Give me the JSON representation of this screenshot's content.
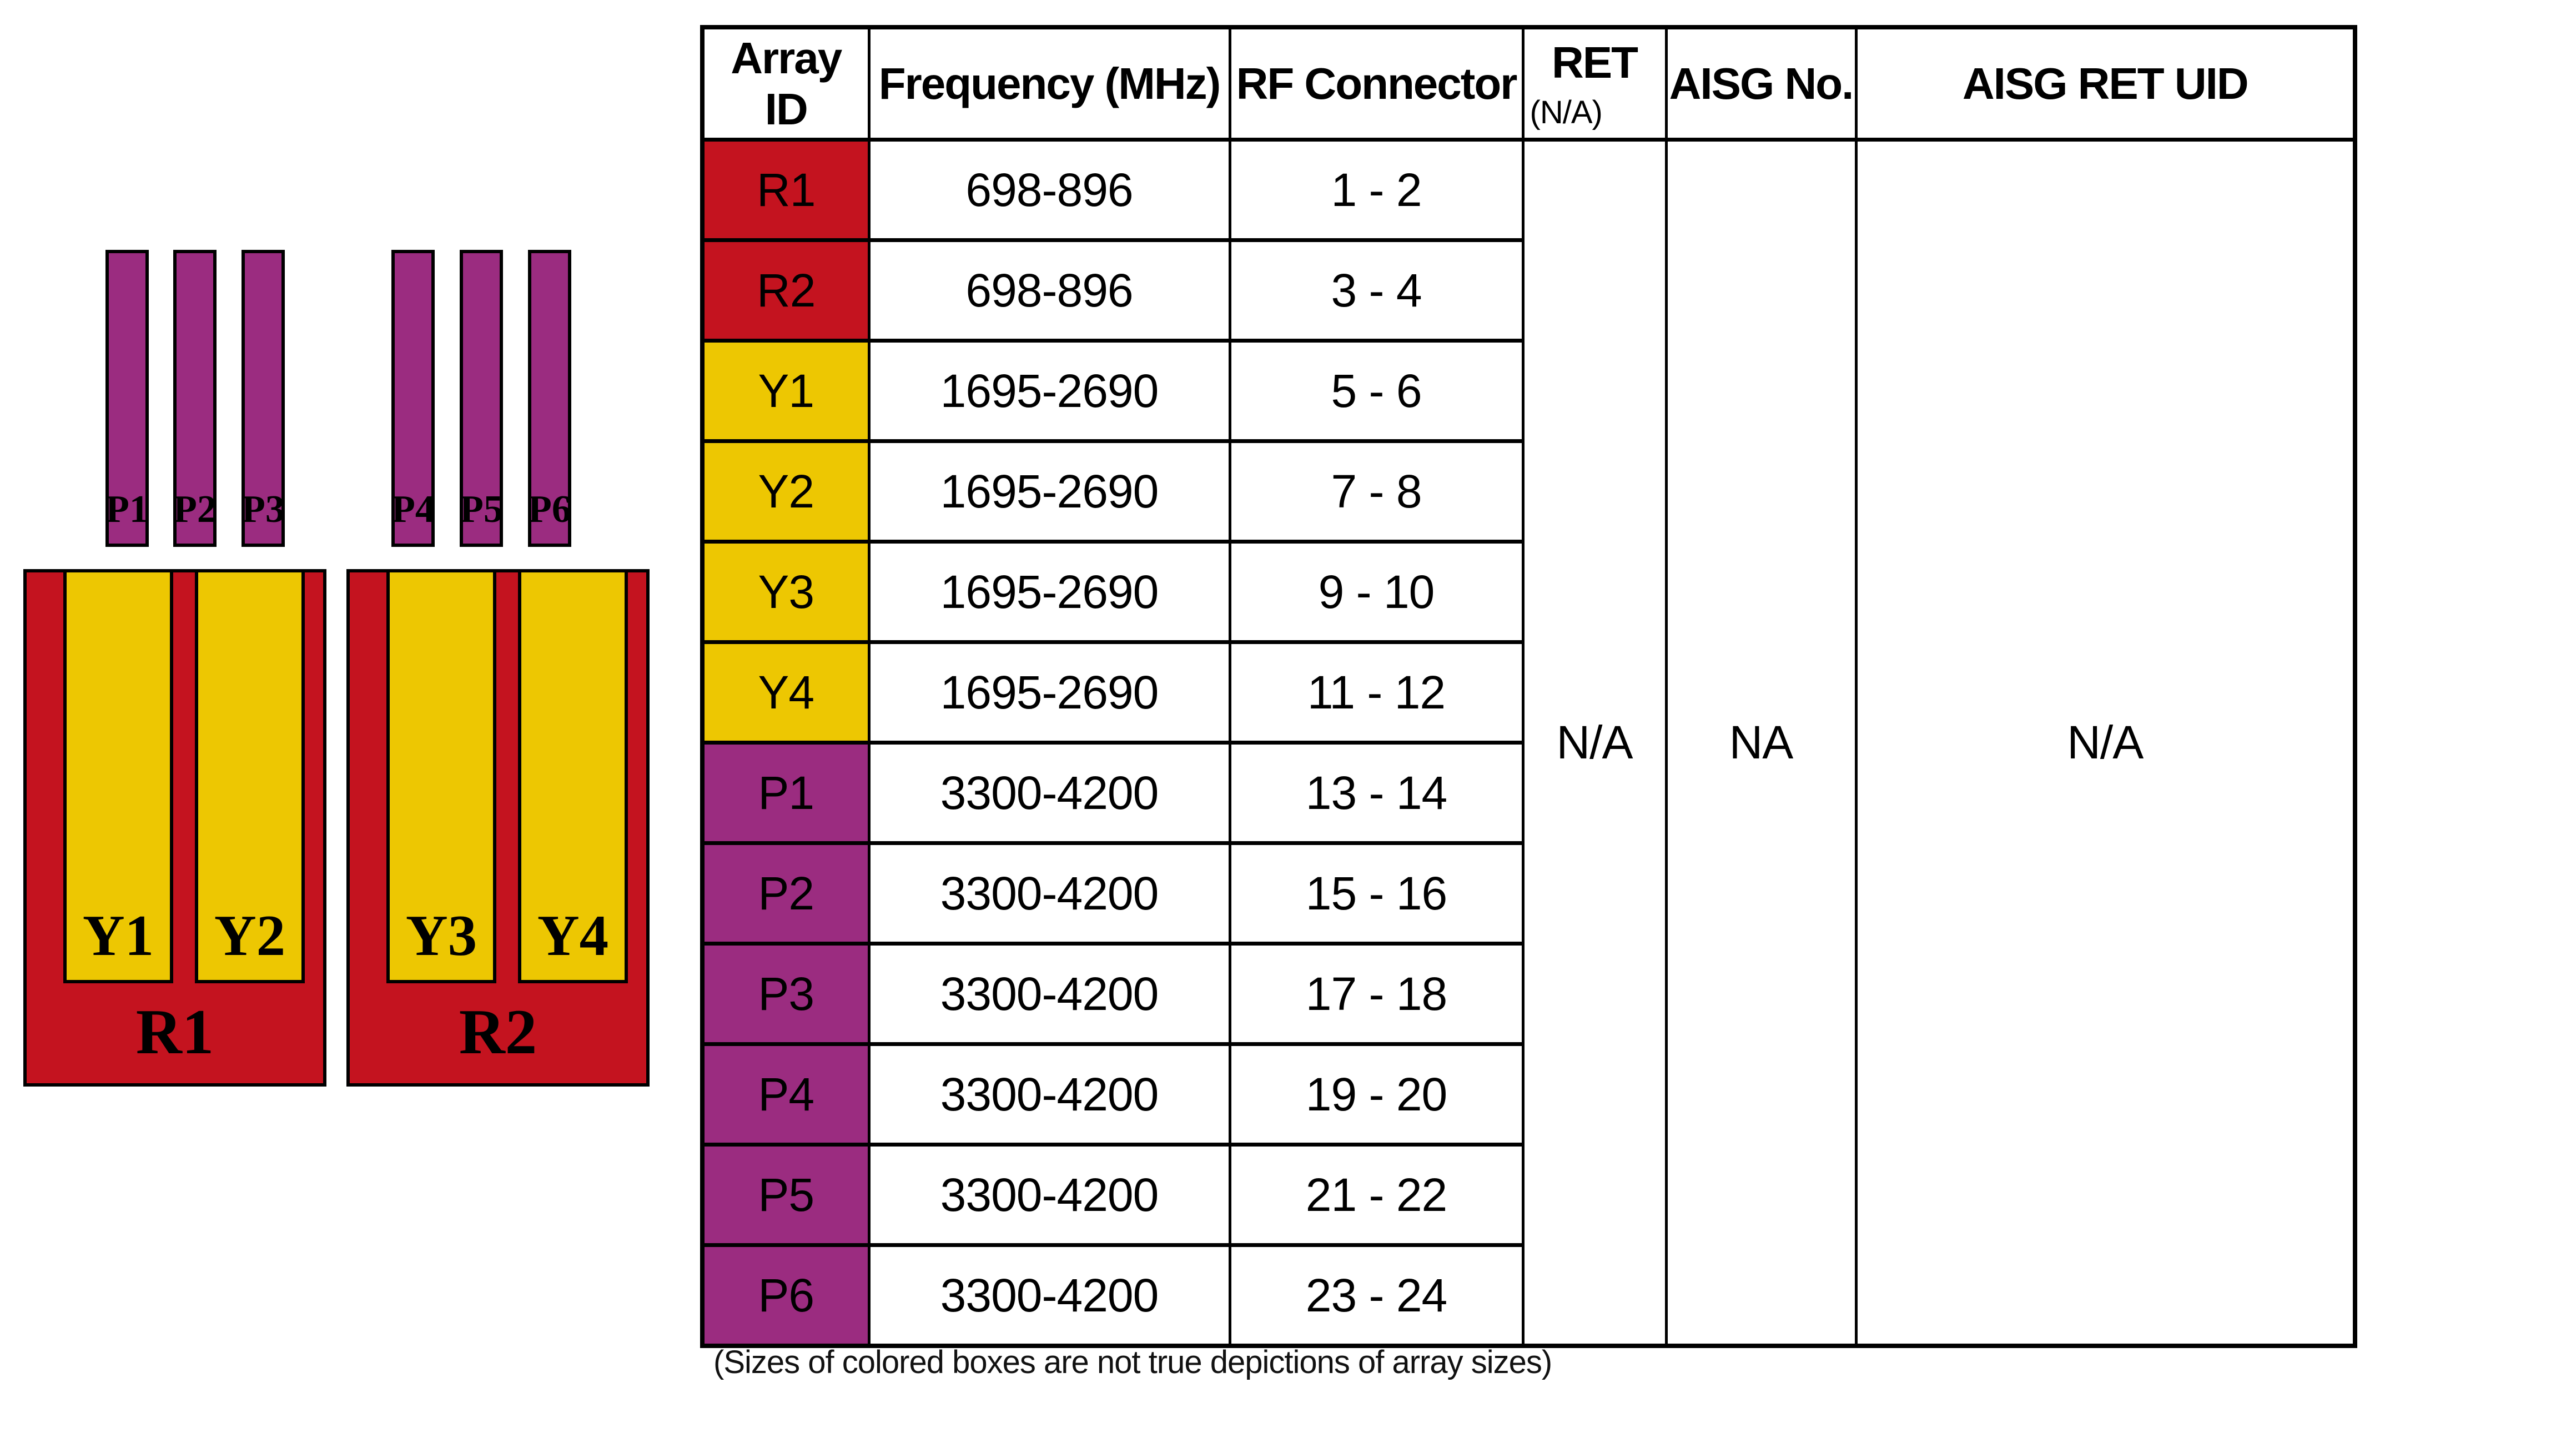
{
  "colors": {
    "red": "#C4131F",
    "yellow": "#EDC702",
    "purple": "#9B2C80",
    "border": "#000000"
  },
  "diagram": {
    "p_bars": [
      {
        "label": "P1"
      },
      {
        "label": "P2"
      },
      {
        "label": "P3"
      },
      {
        "label": "P4"
      },
      {
        "label": "P5"
      },
      {
        "label": "P6"
      }
    ],
    "groups": [
      {
        "red_label": "R1",
        "yellow": [
          {
            "label": "Y1"
          },
          {
            "label": "Y2"
          }
        ]
      },
      {
        "red_label": "R2",
        "yellow": [
          {
            "label": "Y3"
          },
          {
            "label": "Y4"
          }
        ]
      }
    ]
  },
  "table": {
    "headers": {
      "array_id": "Array ID",
      "frequency": "Frequency (MHz)",
      "rf_connector": "RF Connector",
      "ret": "RET",
      "ret_sub": "(N/A)",
      "aisg_no": "AISG No.",
      "aisg_ret_uid": "AISG RET UID"
    },
    "rows": [
      {
        "id": "R1",
        "color": "red",
        "frequency": "698-896",
        "rf": "1 - 2"
      },
      {
        "id": "R2",
        "color": "red",
        "frequency": "698-896",
        "rf": "3 - 4"
      },
      {
        "id": "Y1",
        "color": "yellow",
        "frequency": "1695-2690",
        "rf": "5 - 6"
      },
      {
        "id": "Y2",
        "color": "yellow",
        "frequency": "1695-2690",
        "rf": "7 - 8"
      },
      {
        "id": "Y3",
        "color": "yellow",
        "frequency": "1695-2690",
        "rf": "9 - 10"
      },
      {
        "id": "Y4",
        "color": "yellow",
        "frequency": "1695-2690",
        "rf": "11 - 12"
      },
      {
        "id": "P1",
        "color": "purple",
        "frequency": "3300-4200",
        "rf": "13 - 14"
      },
      {
        "id": "P2",
        "color": "purple",
        "frequency": "3300-4200",
        "rf": "15 - 16"
      },
      {
        "id": "P3",
        "color": "purple",
        "frequency": "3300-4200",
        "rf": "17 - 18"
      },
      {
        "id": "P4",
        "color": "purple",
        "frequency": "3300-4200",
        "rf": "19 - 20"
      },
      {
        "id": "P5",
        "color": "purple",
        "frequency": "3300-4200",
        "rf": "21 - 22"
      },
      {
        "id": "P6",
        "color": "purple",
        "frequency": "3300-4200",
        "rf": "23 - 24"
      }
    ],
    "merged": {
      "ret": "N/A",
      "aisg_no": "NA",
      "aisg_ret_uid": "N/A"
    }
  },
  "caption": "(Sizes of colored boxes are not true depictions of array sizes)"
}
